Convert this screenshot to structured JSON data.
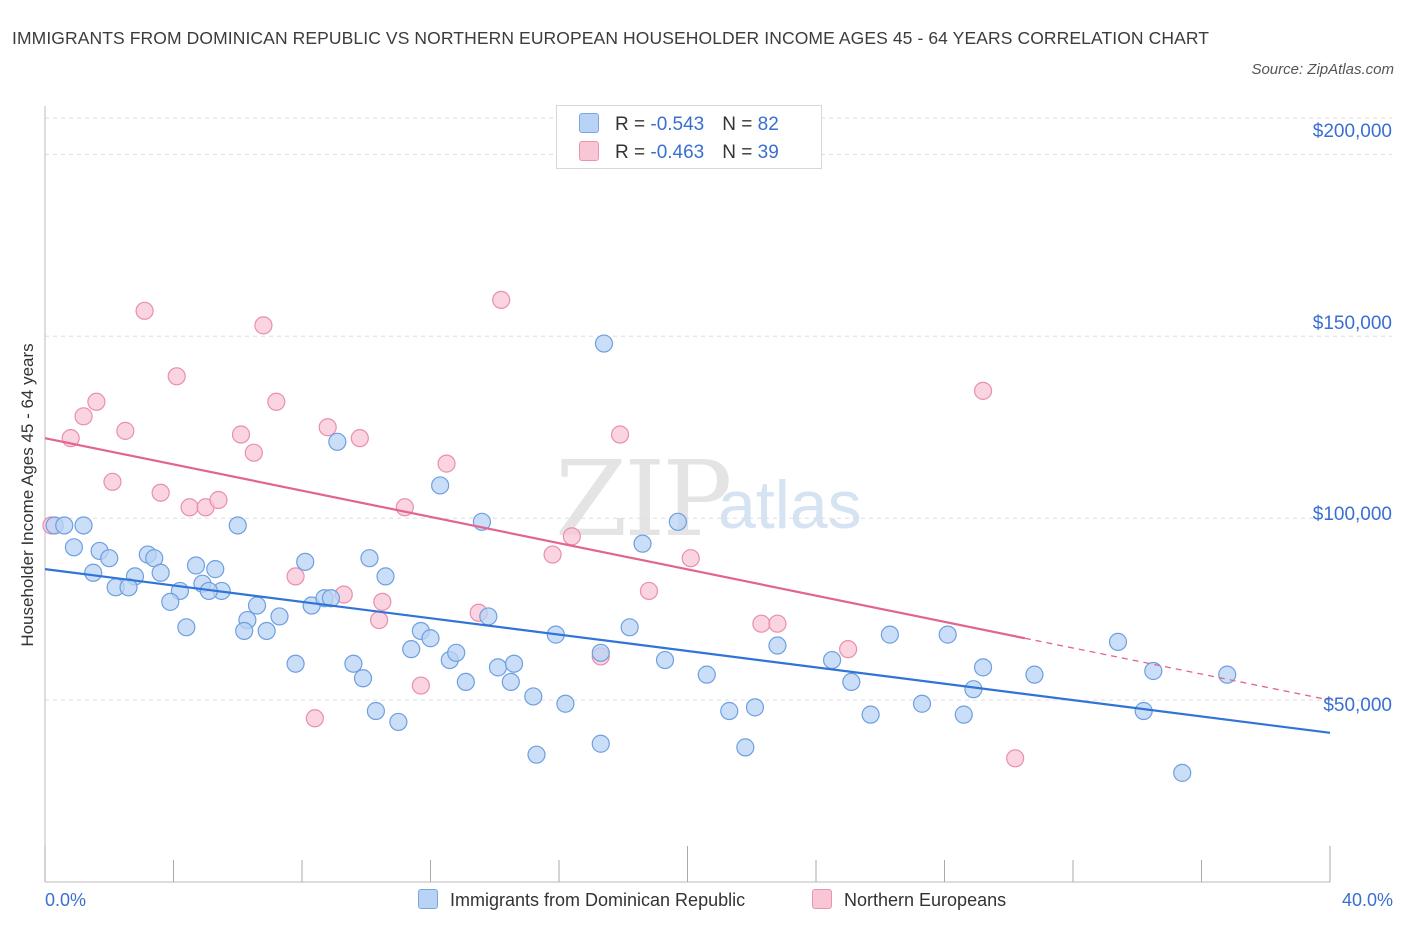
{
  "title": "IMMIGRANTS FROM DOMINICAN REPUBLIC VS NORTHERN EUROPEAN HOUSEHOLDER INCOME AGES 45 - 64 YEARS CORRELATION CHART",
  "source": "Source: ZipAtlas.com",
  "watermark": {
    "zip": "ZIP",
    "atlas": "atlas"
  },
  "legend_stats": [
    {
      "r_label": "R = ",
      "r_value": "-0.543",
      "n_label": "N = ",
      "n_value": "82",
      "color": "#b9d3f4",
      "border": "#7aa6e4"
    },
    {
      "r_label": "R = ",
      "r_value": "-0.463",
      "n_label": "N = ",
      "n_value": "39",
      "color": "#f8c6d5",
      "border": "#ec94ad"
    }
  ],
  "colors": {
    "blue_fill": "#b9d3f4",
    "blue_stroke": "#6e9fe0",
    "blue_line": "#2f74d6",
    "pink_fill": "#f8c6d5",
    "pink_stroke": "#ea8fab",
    "pink_line": "#e2658f",
    "grid": "#dddddd",
    "axis_label": "#3a6fd1"
  },
  "chart_data": {
    "type": "scatter",
    "title": "IMMIGRANTS FROM DOMINICAN REPUBLIC VS NORTHERN EUROPEAN HOUSEHOLDER INCOME AGES 45 - 64 YEARS CORRELATION CHART",
    "xlabel": "",
    "ylabel": "Householder Income Ages 45 - 64 years",
    "xlim": [
      0,
      40
    ],
    "ylim": [
      0,
      210000
    ],
    "x_tick_labels": [
      "0.0%",
      "40.0%"
    ],
    "y_ticks": [
      50000,
      100000,
      150000,
      200000
    ],
    "y_tick_labels": [
      "$50,000",
      "$100,000",
      "$150,000",
      "$200,000"
    ],
    "grid": true,
    "legend_placement": "bottom",
    "series": [
      {
        "name": "Immigrants from Dominican Republic",
        "trend": {
          "x": [
            0,
            40
          ],
          "y": [
            86000,
            41000
          ]
        },
        "points": [
          [
            0.3,
            98000
          ],
          [
            0.6,
            98000
          ],
          [
            1.2,
            98000
          ],
          [
            0.9,
            92000
          ],
          [
            1.7,
            91000
          ],
          [
            2.0,
            89000
          ],
          [
            1.5,
            85000
          ],
          [
            3.2,
            90000
          ],
          [
            3.4,
            89000
          ],
          [
            2.8,
            84000
          ],
          [
            3.6,
            85000
          ],
          [
            2.2,
            81000
          ],
          [
            2.6,
            81000
          ],
          [
            4.2,
            80000
          ],
          [
            4.7,
            87000
          ],
          [
            4.9,
            82000
          ],
          [
            5.3,
            86000
          ],
          [
            5.5,
            80000
          ],
          [
            5.1,
            80000
          ],
          [
            6.0,
            98000
          ],
          [
            3.9,
            77000
          ],
          [
            4.4,
            70000
          ],
          [
            6.3,
            72000
          ],
          [
            6.6,
            76000
          ],
          [
            6.9,
            69000
          ],
          [
            7.3,
            73000
          ],
          [
            6.2,
            69000
          ],
          [
            7.8,
            60000
          ],
          [
            8.1,
            88000
          ],
          [
            8.3,
            76000
          ],
          [
            8.7,
            78000
          ],
          [
            8.9,
            78000
          ],
          [
            9.1,
            121000
          ],
          [
            9.6,
            60000
          ],
          [
            9.9,
            56000
          ],
          [
            10.1,
            89000
          ],
          [
            10.6,
            84000
          ],
          [
            10.3,
            47000
          ],
          [
            11.0,
            44000
          ],
          [
            11.4,
            64000
          ],
          [
            11.7,
            69000
          ],
          [
            12.0,
            67000
          ],
          [
            12.3,
            109000
          ],
          [
            12.6,
            61000
          ],
          [
            12.8,
            63000
          ],
          [
            13.1,
            55000
          ],
          [
            13.6,
            99000
          ],
          [
            13.8,
            73000
          ],
          [
            14.1,
            59000
          ],
          [
            14.6,
            60000
          ],
          [
            15.2,
            51000
          ],
          [
            14.5,
            55000
          ],
          [
            15.9,
            68000
          ],
          [
            16.2,
            49000
          ],
          [
            15.3,
            35000
          ],
          [
            17.3,
            63000
          ],
          [
            18.2,
            70000
          ],
          [
            17.3,
            38000
          ],
          [
            17.4,
            148000
          ],
          [
            18.6,
            93000
          ],
          [
            19.3,
            61000
          ],
          [
            19.7,
            99000
          ],
          [
            20.6,
            57000
          ],
          [
            21.3,
            47000
          ],
          [
            22.1,
            48000
          ],
          [
            21.8,
            37000
          ],
          [
            22.8,
            65000
          ],
          [
            24.5,
            61000
          ],
          [
            25.1,
            55000
          ],
          [
            25.7,
            46000
          ],
          [
            26.3,
            68000
          ],
          [
            27.3,
            49000
          ],
          [
            28.1,
            68000
          ],
          [
            28.6,
            46000
          ],
          [
            28.9,
            53000
          ],
          [
            29.2,
            59000
          ],
          [
            30.8,
            57000
          ],
          [
            33.4,
            66000
          ],
          [
            34.2,
            47000
          ],
          [
            34.5,
            58000
          ],
          [
            35.4,
            30000
          ],
          [
            36.8,
            57000
          ]
        ]
      },
      {
        "name": "Northern Europeans",
        "trend": {
          "x": [
            0,
            30.5
          ],
          "y": [
            122000,
            67000
          ]
        },
        "trend_ext": {
          "x": [
            30.5,
            40
          ],
          "y": [
            67000,
            50000
          ]
        },
        "points": [
          [
            0.2,
            98000
          ],
          [
            0.8,
            122000
          ],
          [
            1.2,
            128000
          ],
          [
            1.6,
            132000
          ],
          [
            2.1,
            110000
          ],
          [
            2.5,
            124000
          ],
          [
            3.1,
            157000
          ],
          [
            3.6,
            107000
          ],
          [
            4.1,
            139000
          ],
          [
            4.5,
            103000
          ],
          [
            5.0,
            103000
          ],
          [
            5.4,
            105000
          ],
          [
            6.1,
            123000
          ],
          [
            6.5,
            118000
          ],
          [
            6.8,
            153000
          ],
          [
            7.2,
            132000
          ],
          [
            7.8,
            84000
          ],
          [
            8.4,
            45000
          ],
          [
            8.8,
            125000
          ],
          [
            9.3,
            79000
          ],
          [
            9.8,
            122000
          ],
          [
            10.4,
            72000
          ],
          [
            10.5,
            77000
          ],
          [
            11.2,
            103000
          ],
          [
            11.7,
            54000
          ],
          [
            12.5,
            115000
          ],
          [
            13.5,
            74000
          ],
          [
            14.2,
            160000
          ],
          [
            15.8,
            90000
          ],
          [
            16.4,
            95000
          ],
          [
            17.3,
            62000
          ],
          [
            17.9,
            123000
          ],
          [
            18.8,
            80000
          ],
          [
            20.1,
            89000
          ],
          [
            22.3,
            71000
          ],
          [
            22.8,
            71000
          ],
          [
            25.0,
            64000
          ],
          [
            29.2,
            135000
          ],
          [
            30.2,
            34000
          ]
        ]
      }
    ]
  }
}
